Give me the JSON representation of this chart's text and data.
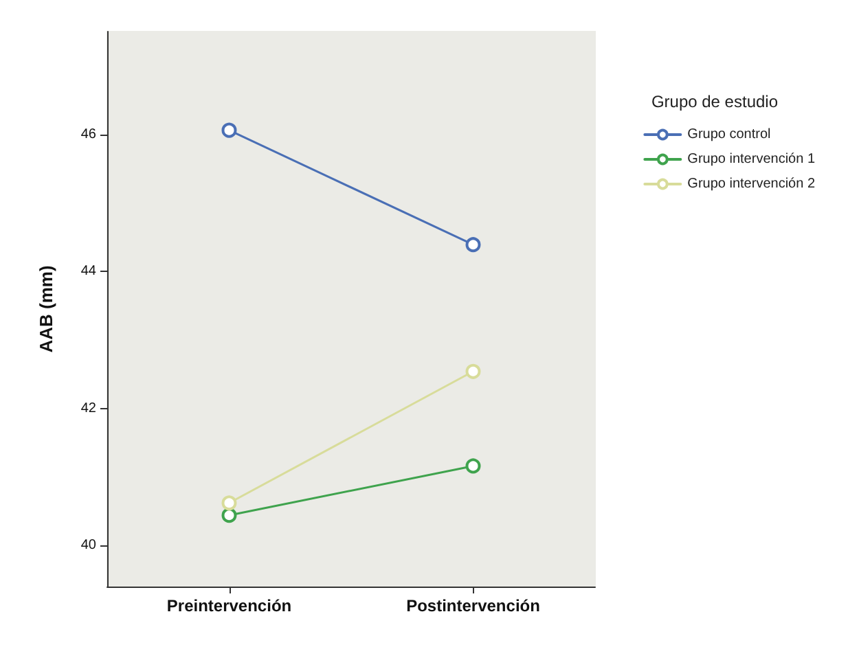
{
  "chart_data": {
    "type": "line",
    "ylabel": "AAB (mm)",
    "legend_title": "Grupo de estudio",
    "categories": [
      "Preintervención",
      "Postintervención"
    ],
    "series": [
      {
        "name": "Grupo control",
        "color": "#4a6fb5",
        "values": [
          46.06,
          44.39
        ]
      },
      {
        "name": "Grupo intervención 1",
        "color": "#3fa34d",
        "values": [
          40.44,
          41.16
        ]
      },
      {
        "name": "Grupo intervención 2",
        "color": "#d8dc9a",
        "values": [
          40.62,
          42.54
        ]
      }
    ],
    "ylim": [
      39.4,
      47.5
    ],
    "yticks": [
      40,
      42,
      44,
      46
    ],
    "grid": false,
    "legend": "right",
    "marker": "circle",
    "line_style": "solid"
  }
}
